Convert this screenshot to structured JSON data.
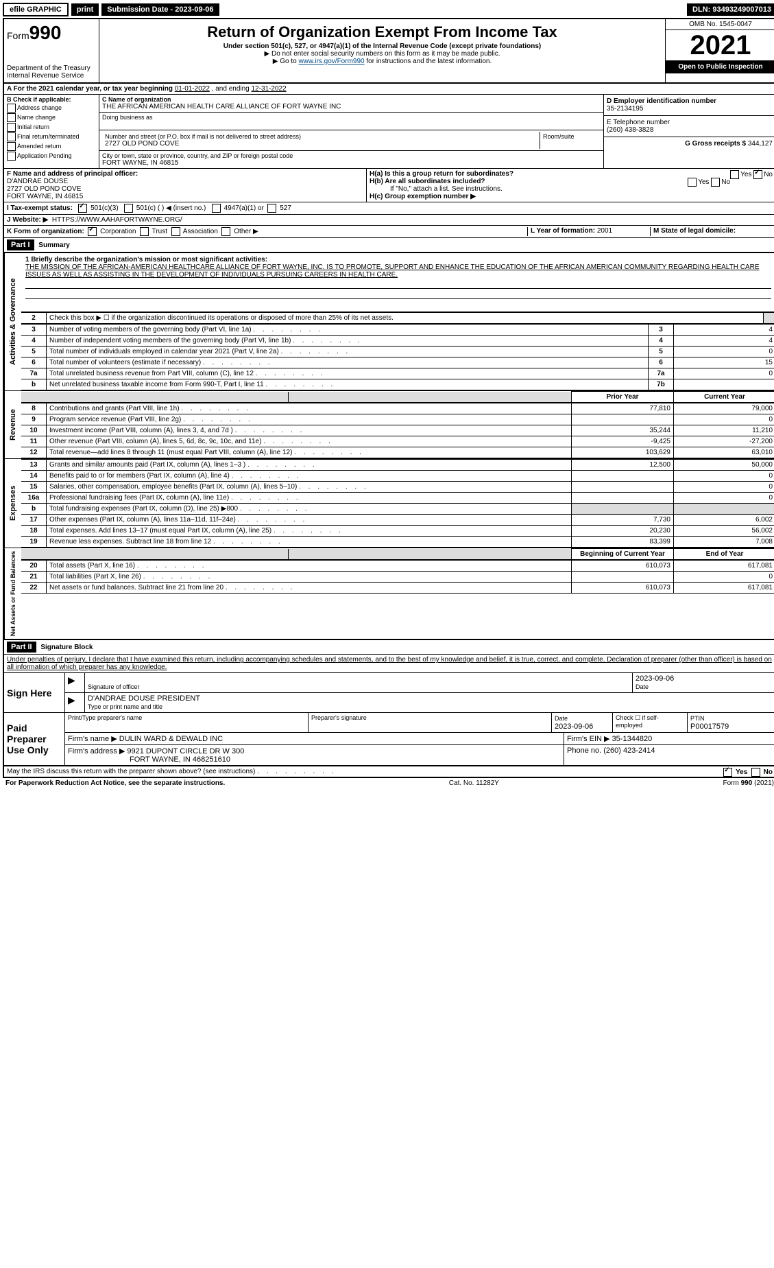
{
  "topbar": {
    "efile": "efile GRAPHIC",
    "print": "print",
    "subdate_label": "Submission Date - 2023-09-06",
    "dln": "DLN: 93493249007013"
  },
  "header": {
    "form_prefix": "Form",
    "form_no": "990",
    "dept": "Department of the Treasury",
    "irs": "Internal Revenue Service",
    "title": "Return of Organization Exempt From Income Tax",
    "sub": "Under section 501(c), 527, or 4947(a)(1) of the Internal Revenue Code (except private foundations)",
    "note1": "▶ Do not enter social security numbers on this form as it may be made public.",
    "note2": "▶ Go to ",
    "link": "www.irs.gov/Form990",
    "note2b": " for instructions and the latest information.",
    "omb": "OMB No. 1545-0047",
    "year": "2021",
    "open": "Open to Public Inspection"
  },
  "row_a": {
    "label": "A For the 2021 calendar year, or tax year beginning ",
    "begin": "01-01-2022",
    "mid": " , and ending ",
    "end": "12-31-2022"
  },
  "section_b": {
    "heading": "B Check if applicable:",
    "opts": [
      "Address change",
      "Name change",
      "Initial return",
      "Final return/terminated",
      "Amended return",
      "Application Pending"
    ],
    "c_label": "C Name of organization",
    "org": "THE AFRICAN AMERICAN HEALTH CARE ALLIANCE OF FORT WAYNE INC",
    "dba": "Doing business as",
    "addr_label": "Number and street (or P.O. box if mail is not delivered to street address)",
    "room": "Room/suite",
    "addr": "2727 OLD POND COVE",
    "city_label": "City or town, state or province, country, and ZIP or foreign postal code",
    "city": "FORT WAYNE, IN  46815",
    "d_label": "D Employer identification number",
    "ein": "35-2134195",
    "e_label": "E Telephone number",
    "phone": "(260) 438-3828",
    "g_label": "G Gross receipts $ ",
    "gross": "344,127"
  },
  "section_f": {
    "f_label": "F Name and address of principal officer:",
    "name": "D'ANDRAE DOUSE",
    "addr": "2727 OLD POND COVE",
    "city": "FORT WAYNE, IN  46815",
    "ha": "H(a)  Is this a group return for subordinates?",
    "hb": "H(b)  Are all subordinates included?",
    "hb_note": "If \"No,\" attach a list. See instructions.",
    "hc": "H(c)  Group exemption number ▶",
    "yes": "Yes",
    "no": "No"
  },
  "row_i": {
    "label": "I   Tax-exempt status:",
    "o1": "501(c)(3)",
    "o2": "501(c) (   ) ◀ (insert no.)",
    "o3": "4947(a)(1) or",
    "o4": "527"
  },
  "row_j": {
    "label": "J   Website: ▶",
    "url": "HTTPS://WWW.AAHAFORTWAYNE.ORG/"
  },
  "row_k": {
    "label": "K Form of organization:",
    "o1": "Corporation",
    "o2": "Trust",
    "o3": "Association",
    "o4": "Other ▶",
    "l_label": "L Year of formation: ",
    "l_val": "2001",
    "m_label": "M State of legal domicile:"
  },
  "part1": {
    "tag": "Part I",
    "title": "Summary",
    "vert1": "Activities & Governance",
    "vert2": "Revenue",
    "vert3": "Expenses",
    "vert4": "Net Assets or Fund Balances",
    "l1": "1 Briefly describe the organization's mission or most significant activities:",
    "mission": "THE MISSION OF THE AFRICAN-AMERICAN HEALTHCARE ALLIANCE OF FORT WAYNE, INC. IS TO PROMOTE, SUPPORT AND ENHANCE THE EDUCATION OF THE AFRICAN AMERICAN COMMUNITY REGARDING HEALTH CARE ISSUES AS WELL AS ASSISTING IN THE DEVELOPMENT OF INDIVIDUALS PURSUING CAREERS IN HEALTH CARE.",
    "l2": "Check this box ▶ ☐  if the organization discontinued its operations or disposed of more than 25% of its net assets.",
    "rows_g": [
      {
        "n": "3",
        "label": "Number of voting members of the governing body (Part VI, line 1a)",
        "box": "3",
        "v": "4"
      },
      {
        "n": "4",
        "label": "Number of independent voting members of the governing body (Part VI, line 1b)",
        "box": "4",
        "v": "4"
      },
      {
        "n": "5",
        "label": "Total number of individuals employed in calendar year 2021 (Part V, line 2a)",
        "box": "5",
        "v": "0"
      },
      {
        "n": "6",
        "label": "Total number of volunteers (estimate if necessary)",
        "box": "6",
        "v": "15"
      },
      {
        "n": "7a",
        "label": "Total unrelated business revenue from Part VIII, column (C), line 12",
        "box": "7a",
        "v": "0"
      },
      {
        "n": "b",
        "label": "Net unrelated business taxable income from Form 990-T, Part I, line 11",
        "box": "7b",
        "v": ""
      }
    ],
    "hdr_prior": "Prior Year",
    "hdr_curr": "Current Year",
    "rows_r": [
      {
        "n": "8",
        "label": "Contributions and grants (Part VIII, line 1h)",
        "p": "77,810",
        "c": "79,000"
      },
      {
        "n": "9",
        "label": "Program service revenue (Part VIII, line 2g)",
        "p": "",
        "c": "0"
      },
      {
        "n": "10",
        "label": "Investment income (Part VIII, column (A), lines 3, 4, and 7d )",
        "p": "35,244",
        "c": "11,210"
      },
      {
        "n": "11",
        "label": "Other revenue (Part VIII, column (A), lines 5, 6d, 8c, 9c, 10c, and 11e)",
        "p": "-9,425",
        "c": "-27,200"
      },
      {
        "n": "12",
        "label": "Total revenue—add lines 8 through 11 (must equal Part VIII, column (A), line 12)",
        "p": "103,629",
        "c": "63,010"
      }
    ],
    "rows_e": [
      {
        "n": "13",
        "label": "Grants and similar amounts paid (Part IX, column (A), lines 1–3 )",
        "p": "12,500",
        "c": "50,000"
      },
      {
        "n": "14",
        "label": "Benefits paid to or for members (Part IX, column (A), line 4)",
        "p": "",
        "c": "0"
      },
      {
        "n": "15",
        "label": "Salaries, other compensation, employee benefits (Part IX, column (A), lines 5–10)",
        "p": "",
        "c": "0"
      },
      {
        "n": "16a",
        "label": "Professional fundraising fees (Part IX, column (A), line 11e)",
        "p": "",
        "c": "0"
      },
      {
        "n": "b",
        "label": "Total fundraising expenses (Part IX, column (D), line 25) ▶800",
        "p": "shade",
        "c": "shade"
      },
      {
        "n": "17",
        "label": "Other expenses (Part IX, column (A), lines 11a–11d, 11f–24e)",
        "p": "7,730",
        "c": "6,002"
      },
      {
        "n": "18",
        "label": "Total expenses. Add lines 13–17 (must equal Part IX, column (A), line 25)",
        "p": "20,230",
        "c": "56,002"
      },
      {
        "n": "19",
        "label": "Revenue less expenses. Subtract line 18 from line 12",
        "p": "83,399",
        "c": "7,008"
      }
    ],
    "hdr_beg": "Beginning of Current Year",
    "hdr_end": "End of Year",
    "rows_n": [
      {
        "n": "20",
        "label": "Total assets (Part X, line 16)",
        "p": "610,073",
        "c": "617,081"
      },
      {
        "n": "21",
        "label": "Total liabilities (Part X, line 26)",
        "p": "",
        "c": "0"
      },
      {
        "n": "22",
        "label": "Net assets or fund balances. Subtract line 21 from line 20",
        "p": "610,073",
        "c": "617,081"
      }
    ]
  },
  "part2": {
    "tag": "Part II",
    "title": "Signature Block",
    "penalty": "Under penalties of perjury, I declare that I have examined this return, including accompanying schedules and statements, and to the best of my knowledge and belief, it is true, correct, and complete. Declaration of preparer (other than officer) is based on all information of which preparer has any knowledge.",
    "sign": "Sign Here",
    "sig_officer": "Signature of officer",
    "date": "Date",
    "date_v": "2023-09-06",
    "officer": "D'ANDRAE DOUSE  PRESIDENT",
    "type_name": "Type or print name and title",
    "paid": "Paid Preparer Use Only",
    "prep_name_l": "Print/Type preparer's name",
    "prep_sig_l": "Preparer's signature",
    "prep_date": "2023-09-06",
    "check_self": "Check ☐ if self-employed",
    "ptin_l": "PTIN",
    "ptin": "P00017579",
    "firm_l": "Firm's name    ▶",
    "firm": "DULIN WARD & DEWALD INC",
    "firm_ein_l": "Firm's EIN ▶",
    "firm_ein": "35-1344820",
    "firm_addr_l": "Firm's address ▶",
    "firm_addr": "9921 DUPONT CIRCLE DR W 300",
    "firm_city": "FORT WAYNE, IN  468251610",
    "phone_l": "Phone no. ",
    "phone": "(260) 423-2414",
    "may": "May the IRS discuss this return with the preparer shown above? (see instructions)"
  },
  "footer": {
    "left": "For Paperwork Reduction Act Notice, see the separate instructions.",
    "mid": "Cat. No. 11282Y",
    "right": "Form 990 (2021)"
  }
}
